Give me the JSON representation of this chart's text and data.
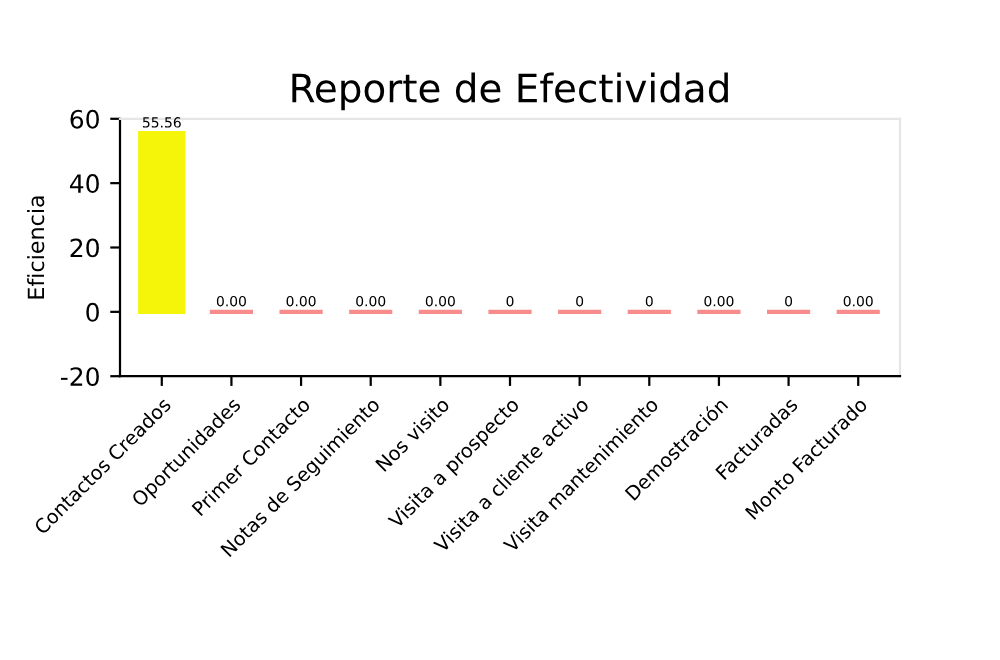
{
  "chart_data": {
    "type": "bar",
    "title": "Reporte de Efectividad",
    "ylabel": "Eficiencia",
    "categories": [
      "Contactos Creados",
      "Oportunidades",
      "Primer Contacto",
      "Notas de Seguimiento",
      "Nos visito",
      "Visita a prospecto",
      "Visita a cliente activo",
      "Visita mantenimiento",
      "Demostración",
      "Facturadas",
      "Monto Facturado"
    ],
    "values": [
      55.56,
      0,
      0,
      0,
      0,
      0,
      0,
      0,
      0,
      0,
      0
    ],
    "value_labels": [
      "55.56",
      "0.00",
      "0.00",
      "0.00",
      "0.00",
      "0",
      "0",
      "0",
      "0.00",
      "0",
      "0.00"
    ],
    "colors": [
      "#f5f50a",
      "#f88c8c",
      "#f88c8c",
      "#f88c8c",
      "#f88c8c",
      "#f88c8c",
      "#f88c8c",
      "#f88c8c",
      "#f88c8c",
      "#f88c8c",
      "#f88c8c"
    ],
    "ylim": [
      -20,
      60
    ],
    "yticks": [
      -20,
      0,
      20,
      40,
      60
    ],
    "grid": false,
    "legend": false
  }
}
